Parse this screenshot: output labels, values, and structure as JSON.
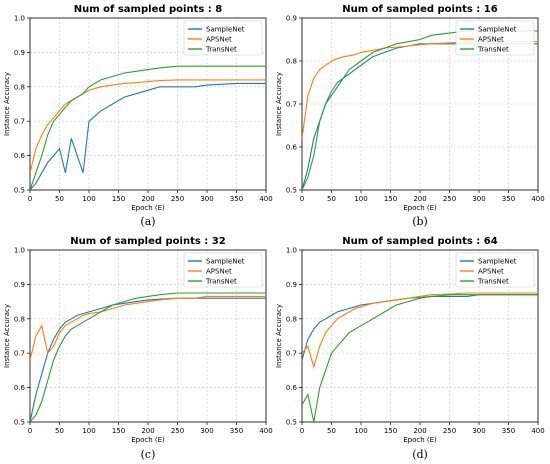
{
  "colors": {
    "SampleNet": "#1f77b4",
    "APSNet": "#ff7f0e",
    "TransNet": "#2ca02c"
  },
  "chart_data": [
    {
      "type": "line",
      "title": "Num of sampled points : 8",
      "caption": "(a)",
      "xlabel": "Epoch (E)",
      "ylabel": "Instance Accuracy",
      "xlim": [
        0,
        400
      ],
      "ylim": [
        0.5,
        1.0
      ],
      "xticks": [
        0,
        50,
        100,
        150,
        200,
        250,
        300,
        350,
        400
      ],
      "yticks": [
        0.5,
        0.6,
        0.7,
        0.8,
        0.9,
        1.0
      ],
      "grid": true,
      "legend": "upper right",
      "x": [
        0,
        10,
        20,
        30,
        40,
        50,
        60,
        70,
        80,
        90,
        100,
        120,
        140,
        160,
        180,
        200,
        220,
        250,
        280,
        300,
        350,
        400
      ],
      "series": [
        {
          "name": "SampleNet",
          "values": [
            0.5,
            0.52,
            0.55,
            0.58,
            0.6,
            0.62,
            0.55,
            0.65,
            0.6,
            0.55,
            0.7,
            0.73,
            0.75,
            0.77,
            0.78,
            0.79,
            0.8,
            0.8,
            0.8,
            0.805,
            0.81,
            0.81
          ]
        },
        {
          "name": "APSNet",
          "values": [
            0.55,
            0.62,
            0.66,
            0.69,
            0.71,
            0.73,
            0.75,
            0.76,
            0.77,
            0.78,
            0.79,
            0.8,
            0.805,
            0.81,
            0.812,
            0.815,
            0.818,
            0.82,
            0.82,
            0.82,
            0.82,
            0.82
          ]
        },
        {
          "name": "TransNet",
          "values": [
            0.5,
            0.55,
            0.6,
            0.66,
            0.7,
            0.72,
            0.74,
            0.76,
            0.77,
            0.78,
            0.8,
            0.82,
            0.83,
            0.84,
            0.845,
            0.85,
            0.855,
            0.86,
            0.86,
            0.86,
            0.86,
            0.86
          ]
        }
      ]
    },
    {
      "type": "line",
      "title": "Num of sampled points : 16",
      "caption": "(b)",
      "xlabel": "Epoch (E)",
      "ylabel": "Instance Accuracy",
      "xlim": [
        0,
        400
      ],
      "ylim": [
        0.5,
        0.9
      ],
      "xticks": [
        0,
        50,
        100,
        150,
        200,
        250,
        300,
        350,
        400
      ],
      "yticks": [
        0.5,
        0.6,
        0.7,
        0.8,
        0.9
      ],
      "grid": true,
      "legend": "upper right",
      "x": [
        0,
        10,
        20,
        30,
        40,
        50,
        60,
        70,
        80,
        90,
        100,
        120,
        140,
        160,
        180,
        200,
        220,
        250,
        280,
        300,
        350,
        400
      ],
      "series": [
        {
          "name": "SampleNet",
          "values": [
            0.5,
            0.55,
            0.62,
            0.66,
            0.7,
            0.72,
            0.74,
            0.76,
            0.77,
            0.78,
            0.79,
            0.81,
            0.82,
            0.83,
            0.835,
            0.84,
            0.84,
            0.84,
            0.84,
            0.84,
            0.84,
            0.84
          ]
        },
        {
          "name": "APSNet",
          "values": [
            0.62,
            0.72,
            0.76,
            0.78,
            0.79,
            0.8,
            0.805,
            0.81,
            0.812,
            0.815,
            0.82,
            0.825,
            0.83,
            0.832,
            0.835,
            0.838,
            0.84,
            0.842,
            0.845,
            0.845,
            0.845,
            0.845
          ]
        },
        {
          "name": "TransNet",
          "values": [
            0.5,
            0.53,
            0.58,
            0.66,
            0.7,
            0.73,
            0.75,
            0.76,
            0.78,
            0.79,
            0.8,
            0.82,
            0.83,
            0.84,
            0.845,
            0.85,
            0.86,
            0.865,
            0.87,
            0.87,
            0.87,
            0.87
          ]
        }
      ]
    },
    {
      "type": "line",
      "title": "Num of sampled points : 32",
      "caption": "(c)",
      "xlabel": "Epoch (E)",
      "ylabel": "Instance Accuracy",
      "xlim": [
        0,
        400
      ],
      "ylim": [
        0.5,
        1.0
      ],
      "xticks": [
        0,
        50,
        100,
        150,
        200,
        250,
        300,
        350,
        400
      ],
      "yticks": [
        0.5,
        0.6,
        0.7,
        0.8,
        0.9,
        1.0
      ],
      "grid": true,
      "legend": "upper right",
      "x": [
        0,
        10,
        20,
        30,
        40,
        50,
        60,
        70,
        80,
        90,
        100,
        120,
        140,
        160,
        180,
        200,
        220,
        250,
        280,
        300,
        350,
        400
      ],
      "series": [
        {
          "name": "SampleNet",
          "values": [
            0.5,
            0.58,
            0.64,
            0.7,
            0.74,
            0.77,
            0.79,
            0.8,
            0.81,
            0.815,
            0.82,
            0.83,
            0.84,
            0.845,
            0.85,
            0.855,
            0.857,
            0.86,
            0.86,
            0.86,
            0.86,
            0.86
          ]
        },
        {
          "name": "APSNet",
          "values": [
            0.68,
            0.75,
            0.78,
            0.7,
            0.72,
            0.76,
            0.78,
            0.79,
            0.8,
            0.81,
            0.815,
            0.82,
            0.83,
            0.84,
            0.845,
            0.85,
            0.855,
            0.86,
            0.86,
            0.865,
            0.865,
            0.865
          ]
        },
        {
          "name": "TransNet",
          "values": [
            0.5,
            0.52,
            0.56,
            0.62,
            0.68,
            0.72,
            0.75,
            0.77,
            0.78,
            0.79,
            0.8,
            0.82,
            0.84,
            0.85,
            0.86,
            0.865,
            0.87,
            0.875,
            0.875,
            0.875,
            0.875,
            0.875
          ]
        }
      ]
    },
    {
      "type": "line",
      "title": "Num of sampled points : 64",
      "caption": "(d)",
      "xlabel": "Epoch (E)",
      "ylabel": "Instance Accuracy",
      "xlim": [
        0,
        400
      ],
      "ylim": [
        0.5,
        1.0
      ],
      "xticks": [
        0,
        50,
        100,
        150,
        200,
        250,
        300,
        350,
        400
      ],
      "yticks": [
        0.5,
        0.6,
        0.7,
        0.8,
        0.9,
        1.0
      ],
      "grid": true,
      "legend": "upper right",
      "x": [
        0,
        10,
        20,
        30,
        40,
        50,
        60,
        70,
        80,
        90,
        100,
        120,
        140,
        160,
        180,
        200,
        220,
        250,
        280,
        300,
        350,
        400
      ],
      "series": [
        {
          "name": "SampleNet",
          "values": [
            0.68,
            0.74,
            0.77,
            0.79,
            0.8,
            0.81,
            0.82,
            0.825,
            0.83,
            0.835,
            0.84,
            0.845,
            0.85,
            0.855,
            0.86,
            0.862,
            0.865,
            0.865,
            0.865,
            0.87,
            0.87,
            0.87
          ]
        },
        {
          "name": "APSNet",
          "values": [
            0.7,
            0.72,
            0.66,
            0.72,
            0.76,
            0.78,
            0.8,
            0.81,
            0.82,
            0.83,
            0.835,
            0.845,
            0.85,
            0.855,
            0.86,
            0.865,
            0.87,
            0.872,
            0.875,
            0.875,
            0.875,
            0.875
          ]
        },
        {
          "name": "TransNet",
          "values": [
            0.55,
            0.58,
            0.5,
            0.6,
            0.65,
            0.7,
            0.72,
            0.74,
            0.76,
            0.77,
            0.78,
            0.8,
            0.82,
            0.84,
            0.85,
            0.86,
            0.865,
            0.87,
            0.87,
            0.87,
            0.87,
            0.87
          ]
        }
      ]
    }
  ]
}
